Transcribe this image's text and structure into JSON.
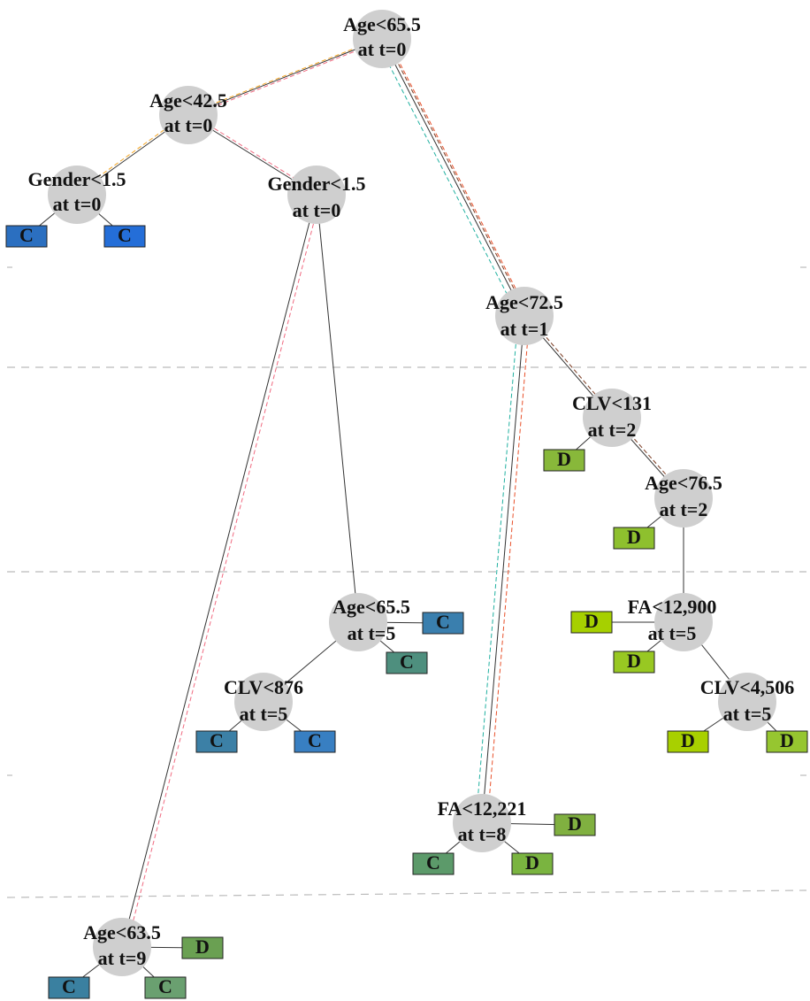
{
  "nodes": [
    {
      "label": "Age<65.5",
      "time": "at t=0"
    },
    {
      "label": "Age<42.5",
      "time": "at t=0"
    },
    {
      "label": "Gender<1.5",
      "time": "at t=0"
    },
    {
      "label": "Gender<1.5",
      "time": "at t=0"
    },
    {
      "label": "Age<72.5",
      "time": "at t=1"
    },
    {
      "label": "CLV<131",
      "time": "at t=2"
    },
    {
      "label": "Age<76.5",
      "time": "at t=2"
    },
    {
      "label": "FA<12,900",
      "time": "at t=5"
    },
    {
      "label": "CLV<4,506",
      "time": "at t=5"
    },
    {
      "label": "Age<65.5",
      "time": "at t=5"
    },
    {
      "label": "CLV<876",
      "time": "at t=5"
    },
    {
      "label": "FA<12,221",
      "time": "at t=8"
    },
    {
      "label": "Age<63.5",
      "time": "at t=9"
    }
  ],
  "leaves": [
    {
      "label": "C"
    },
    {
      "label": "C"
    },
    {
      "label": "C"
    },
    {
      "label": "C"
    },
    {
      "label": "C"
    },
    {
      "label": "C"
    },
    {
      "label": "D"
    },
    {
      "label": "D"
    },
    {
      "label": "D"
    },
    {
      "label": "D"
    },
    {
      "label": "D"
    },
    {
      "label": "D"
    },
    {
      "label": "D"
    },
    {
      "label": "C"
    },
    {
      "label": "D"
    },
    {
      "label": "D"
    },
    {
      "label": "C"
    },
    {
      "label": "C"
    }
  ]
}
